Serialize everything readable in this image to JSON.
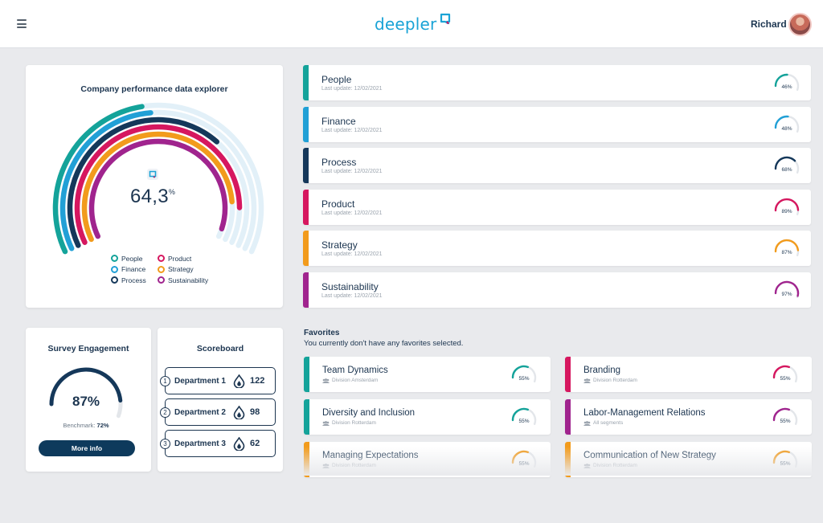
{
  "header": {
    "menu_icon": "hamburger-icon",
    "logo_text": "deepler",
    "user_name": "Richard"
  },
  "explorer": {
    "title": "Company performance data explorer",
    "value": "64,3",
    "unit": "%",
    "legend": [
      {
        "label": "People",
        "color": "#14a39a"
      },
      {
        "label": "Product",
        "color": "#d6175f"
      },
      {
        "label": "Finance",
        "color": "#21a0d6"
      },
      {
        "label": "Strategy",
        "color": "#f29b1c"
      },
      {
        "label": "Process",
        "color": "#15385a"
      },
      {
        "label": "Sustainability",
        "color": "#a0248e"
      }
    ]
  },
  "survey": {
    "title": "Survey Engagement",
    "value": "87%",
    "percent": 87,
    "benchmark_label": "Benchmark:",
    "benchmark_value": "72%",
    "button": "More info"
  },
  "scoreboard": {
    "title": "Scoreboard",
    "rows": [
      {
        "rank": "1",
        "name": "Department 1",
        "score": "122"
      },
      {
        "rank": "2",
        "name": "Department 2",
        "score": "98"
      },
      {
        "rank": "3",
        "name": "Department 3",
        "score": "62"
      }
    ]
  },
  "categories": [
    {
      "name": "People",
      "date": "Last update: 12/02/2021",
      "pct": "46%",
      "value": 46,
      "color": "#14a39a"
    },
    {
      "name": "Finance",
      "date": "Last update: 12/02/2021",
      "pct": "48%",
      "value": 48,
      "color": "#21a0d6"
    },
    {
      "name": "Process",
      "date": "Last update: 12/02/2021",
      "pct": "68%",
      "value": 68,
      "color": "#15385a"
    },
    {
      "name": "Product",
      "date": "Last update: 12/02/2021",
      "pct": "89%",
      "value": 89,
      "color": "#d6175f"
    },
    {
      "name": "Strategy",
      "date": "Last update: 12/02/2021",
      "pct": "87%",
      "value": 87,
      "color": "#f29b1c"
    },
    {
      "name": "Sustainability",
      "date": "Last update: 12/02/2021",
      "pct": "97%",
      "value": 97,
      "color": "#a0248e"
    }
  ],
  "favorites": {
    "title": "Favorites",
    "subtitle": "You currently don't have any favorites selected.",
    "items": [
      {
        "name": "Team Dynamics",
        "segment": "Division Amsterdam",
        "pct": "55%",
        "value": 55,
        "color": "#14a39a"
      },
      {
        "name": "Branding",
        "segment": "Division Rotterdam",
        "pct": "55%",
        "value": 55,
        "color": "#d6175f"
      },
      {
        "name": "Diversity and Inclusion",
        "segment": "Division Rotterdam",
        "pct": "55%",
        "value": 55,
        "color": "#14a39a"
      },
      {
        "name": "Labor-Management Relations",
        "segment": "All segments",
        "pct": "55%",
        "value": 55,
        "color": "#a0248e"
      },
      {
        "name": "Managing Expectations",
        "segment": "Division Rotterdam",
        "pct": "55%",
        "value": 55,
        "color": "#f29b1c"
      },
      {
        "name": "Communication of New Strategy",
        "segment": "Division Rotterdam",
        "pct": "55%",
        "value": 55,
        "color": "#f29b1c"
      }
    ]
  }
}
